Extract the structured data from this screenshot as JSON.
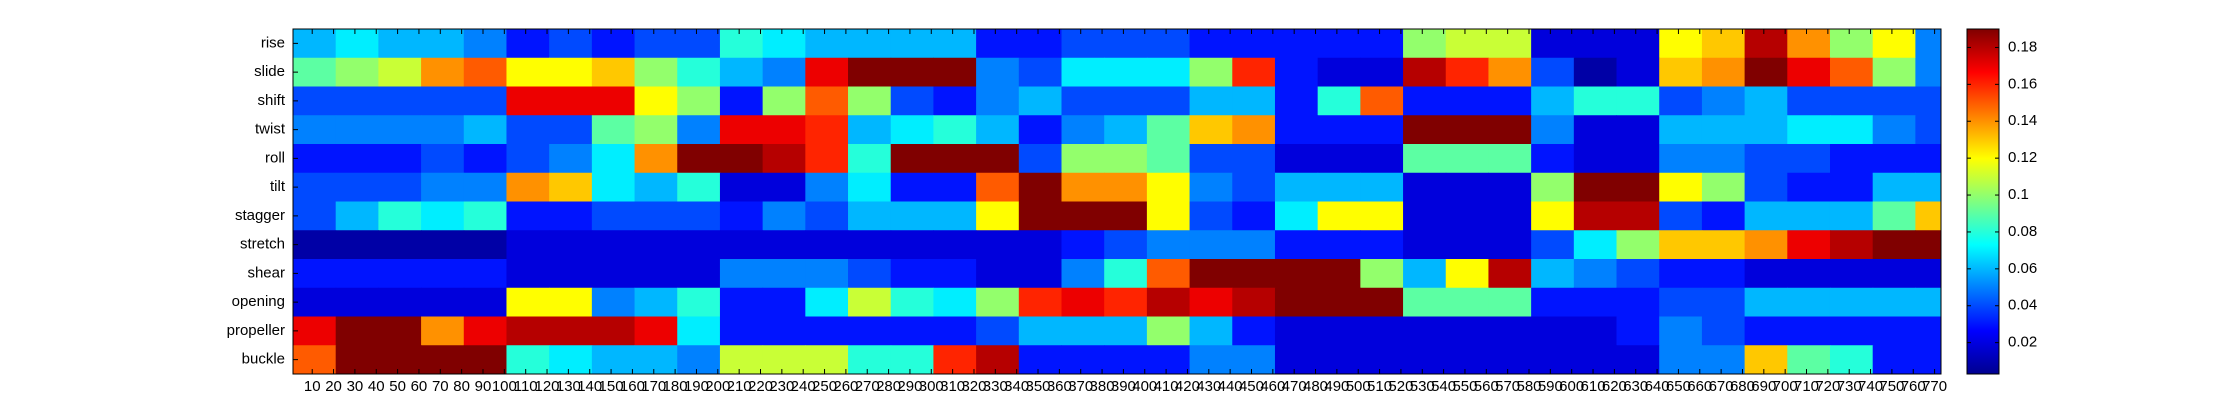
{
  "chart_data": {
    "type": "heatmap",
    "colormap": "jet",
    "rows": [
      "rise",
      "slide",
      "shift",
      "twist",
      "roll",
      "tilt",
      "stagger",
      "stretch",
      "shear",
      "opening",
      "propeller",
      "buckle"
    ],
    "bins": [
      1,
      21,
      41,
      61,
      81,
      101,
      121,
      141,
      161,
      181,
      201,
      221,
      241,
      261,
      281,
      301,
      321,
      341,
      361,
      381,
      401,
      421,
      441,
      461,
      481,
      501,
      521,
      541,
      561,
      581,
      601,
      621,
      641,
      661,
      681,
      701,
      721,
      741,
      761,
      773
    ],
    "values": [
      [
        0.06,
        0.07,
        0.06,
        0.06,
        0.05,
        0.03,
        0.04,
        0.03,
        0.04,
        0.04,
        0.08,
        0.07,
        0.06,
        0.06,
        0.06,
        0.06,
        0.03,
        0.03,
        0.04,
        0.04,
        0.04,
        0.03,
        0.03,
        0.03,
        0.03,
        0.03,
        0.1,
        0.11,
        0.11,
        0.02,
        0.02,
        0.02,
        0.12,
        0.13,
        0.18,
        0.14,
        0.1,
        0.12,
        0.05
      ],
      [
        0.09,
        0.1,
        0.11,
        0.14,
        0.15,
        0.12,
        0.12,
        0.13,
        0.1,
        0.08,
        0.06,
        0.05,
        0.17,
        0.19,
        0.19,
        0.19,
        0.05,
        0.04,
        0.07,
        0.07,
        0.07,
        0.1,
        0.16,
        0.03,
        0.02,
        0.02,
        0.18,
        0.16,
        0.14,
        0.04,
        0.01,
        0.02,
        0.13,
        0.14,
        0.19,
        0.17,
        0.15,
        0.1,
        0.05
      ],
      [
        0.04,
        0.04,
        0.04,
        0.04,
        0.04,
        0.17,
        0.17,
        0.17,
        0.12,
        0.1,
        0.03,
        0.1,
        0.15,
        0.1,
        0.04,
        0.03,
        0.05,
        0.06,
        0.04,
        0.04,
        0.04,
        0.06,
        0.06,
        0.03,
        0.08,
        0.15,
        0.03,
        0.03,
        0.03,
        0.06,
        0.08,
        0.08,
        0.04,
        0.05,
        0.06,
        0.04,
        0.04,
        0.04,
        0.04
      ],
      [
        0.05,
        0.05,
        0.05,
        0.05,
        0.06,
        0.04,
        0.04,
        0.09,
        0.1,
        0.05,
        0.17,
        0.17,
        0.16,
        0.06,
        0.07,
        0.08,
        0.06,
        0.03,
        0.05,
        0.06,
        0.09,
        0.13,
        0.14,
        0.03,
        0.03,
        0.03,
        0.19,
        0.19,
        0.19,
        0.05,
        0.02,
        0.02,
        0.06,
        0.06,
        0.06,
        0.07,
        0.07,
        0.05,
        0.04
      ],
      [
        0.03,
        0.03,
        0.03,
        0.04,
        0.03,
        0.04,
        0.05,
        0.07,
        0.14,
        0.19,
        0.19,
        0.18,
        0.16,
        0.08,
        0.19,
        0.19,
        0.19,
        0.04,
        0.1,
        0.1,
        0.09,
        0.04,
        0.04,
        0.02,
        0.02,
        0.02,
        0.09,
        0.09,
        0.09,
        0.03,
        0.02,
        0.02,
        0.05,
        0.05,
        0.04,
        0.04,
        0.03,
        0.03,
        0.03
      ],
      [
        0.04,
        0.04,
        0.04,
        0.05,
        0.05,
        0.14,
        0.13,
        0.07,
        0.06,
        0.08,
        0.02,
        0.02,
        0.05,
        0.07,
        0.03,
        0.03,
        0.15,
        0.19,
        0.14,
        0.14,
        0.12,
        0.05,
        0.04,
        0.06,
        0.06,
        0.06,
        0.02,
        0.02,
        0.02,
        0.1,
        0.19,
        0.19,
        0.12,
        0.1,
        0.04,
        0.03,
        0.03,
        0.06,
        0.06
      ],
      [
        0.04,
        0.06,
        0.08,
        0.07,
        0.08,
        0.03,
        0.03,
        0.04,
        0.04,
        0.04,
        0.03,
        0.05,
        0.04,
        0.06,
        0.06,
        0.06,
        0.12,
        0.19,
        0.19,
        0.19,
        0.12,
        0.04,
        0.03,
        0.07,
        0.12,
        0.12,
        0.02,
        0.02,
        0.02,
        0.12,
        0.18,
        0.18,
        0.04,
        0.03,
        0.06,
        0.06,
        0.06,
        0.09,
        0.13
      ],
      [
        0.01,
        0.01,
        0.01,
        0.01,
        0.01,
        0.02,
        0.02,
        0.02,
        0.02,
        0.02,
        0.02,
        0.02,
        0.02,
        0.02,
        0.02,
        0.02,
        0.02,
        0.02,
        0.03,
        0.04,
        0.05,
        0.05,
        0.05,
        0.03,
        0.03,
        0.03,
        0.02,
        0.02,
        0.02,
        0.04,
        0.07,
        0.1,
        0.13,
        0.13,
        0.14,
        0.17,
        0.18,
        0.19,
        0.19
      ],
      [
        0.03,
        0.03,
        0.03,
        0.03,
        0.03,
        0.02,
        0.02,
        0.02,
        0.02,
        0.02,
        0.05,
        0.05,
        0.05,
        0.04,
        0.03,
        0.03,
        0.02,
        0.02,
        0.05,
        0.08,
        0.15,
        0.19,
        0.19,
        0.19,
        0.19,
        0.1,
        0.06,
        0.12,
        0.18,
        0.06,
        0.05,
        0.04,
        0.03,
        0.03,
        0.02,
        0.02,
        0.02,
        0.02,
        0.02
      ],
      [
        0.02,
        0.02,
        0.02,
        0.02,
        0.02,
        0.12,
        0.12,
        0.05,
        0.06,
        0.08,
        0.03,
        0.03,
        0.07,
        0.11,
        0.08,
        0.07,
        0.1,
        0.16,
        0.17,
        0.16,
        0.18,
        0.17,
        0.18,
        0.19,
        0.19,
        0.19,
        0.09,
        0.09,
        0.09,
        0.03,
        0.03,
        0.03,
        0.04,
        0.04,
        0.06,
        0.06,
        0.06,
        0.06,
        0.06
      ],
      [
        0.17,
        0.19,
        0.19,
        0.14,
        0.17,
        0.18,
        0.18,
        0.18,
        0.17,
        0.07,
        0.03,
        0.03,
        0.03,
        0.03,
        0.03,
        0.03,
        0.04,
        0.06,
        0.06,
        0.06,
        0.1,
        0.06,
        0.03,
        0.02,
        0.02,
        0.02,
        0.02,
        0.02,
        0.02,
        0.02,
        0.02,
        0.03,
        0.05,
        0.04,
        0.03,
        0.03,
        0.03,
        0.03,
        0.03
      ],
      [
        0.15,
        0.19,
        0.19,
        0.19,
        0.19,
        0.08,
        0.07,
        0.06,
        0.06,
        0.05,
        0.11,
        0.11,
        0.11,
        0.08,
        0.08,
        0.16,
        0.18,
        0.03,
        0.03,
        0.03,
        0.03,
        0.05,
        0.05,
        0.02,
        0.02,
        0.02,
        0.02,
        0.02,
        0.02,
        0.02,
        0.02,
        0.02,
        0.05,
        0.05,
        0.13,
        0.09,
        0.08,
        0.03,
        0.03
      ]
    ],
    "xlim": [
      1,
      773
    ],
    "xticks": [
      10,
      20,
      30,
      40,
      50,
      60,
      70,
      80,
      90,
      100,
      110,
      120,
      130,
      140,
      150,
      160,
      170,
      180,
      190,
      200,
      210,
      220,
      230,
      240,
      250,
      260,
      270,
      280,
      290,
      300,
      310,
      320,
      330,
      340,
      350,
      360,
      370,
      380,
      390,
      400,
      410,
      420,
      430,
      440,
      450,
      460,
      470,
      480,
      490,
      500,
      510,
      520,
      530,
      540,
      550,
      560,
      570,
      580,
      590,
      600,
      610,
      620,
      630,
      640,
      650,
      660,
      670,
      680,
      690,
      700,
      710,
      720,
      730,
      740,
      750,
      760,
      770
    ],
    "clim": [
      0.003,
      0.19
    ],
    "cticks": [
      0.02,
      0.04,
      0.06,
      0.08,
      0.1,
      0.12,
      0.14,
      0.16,
      0.18
    ]
  }
}
